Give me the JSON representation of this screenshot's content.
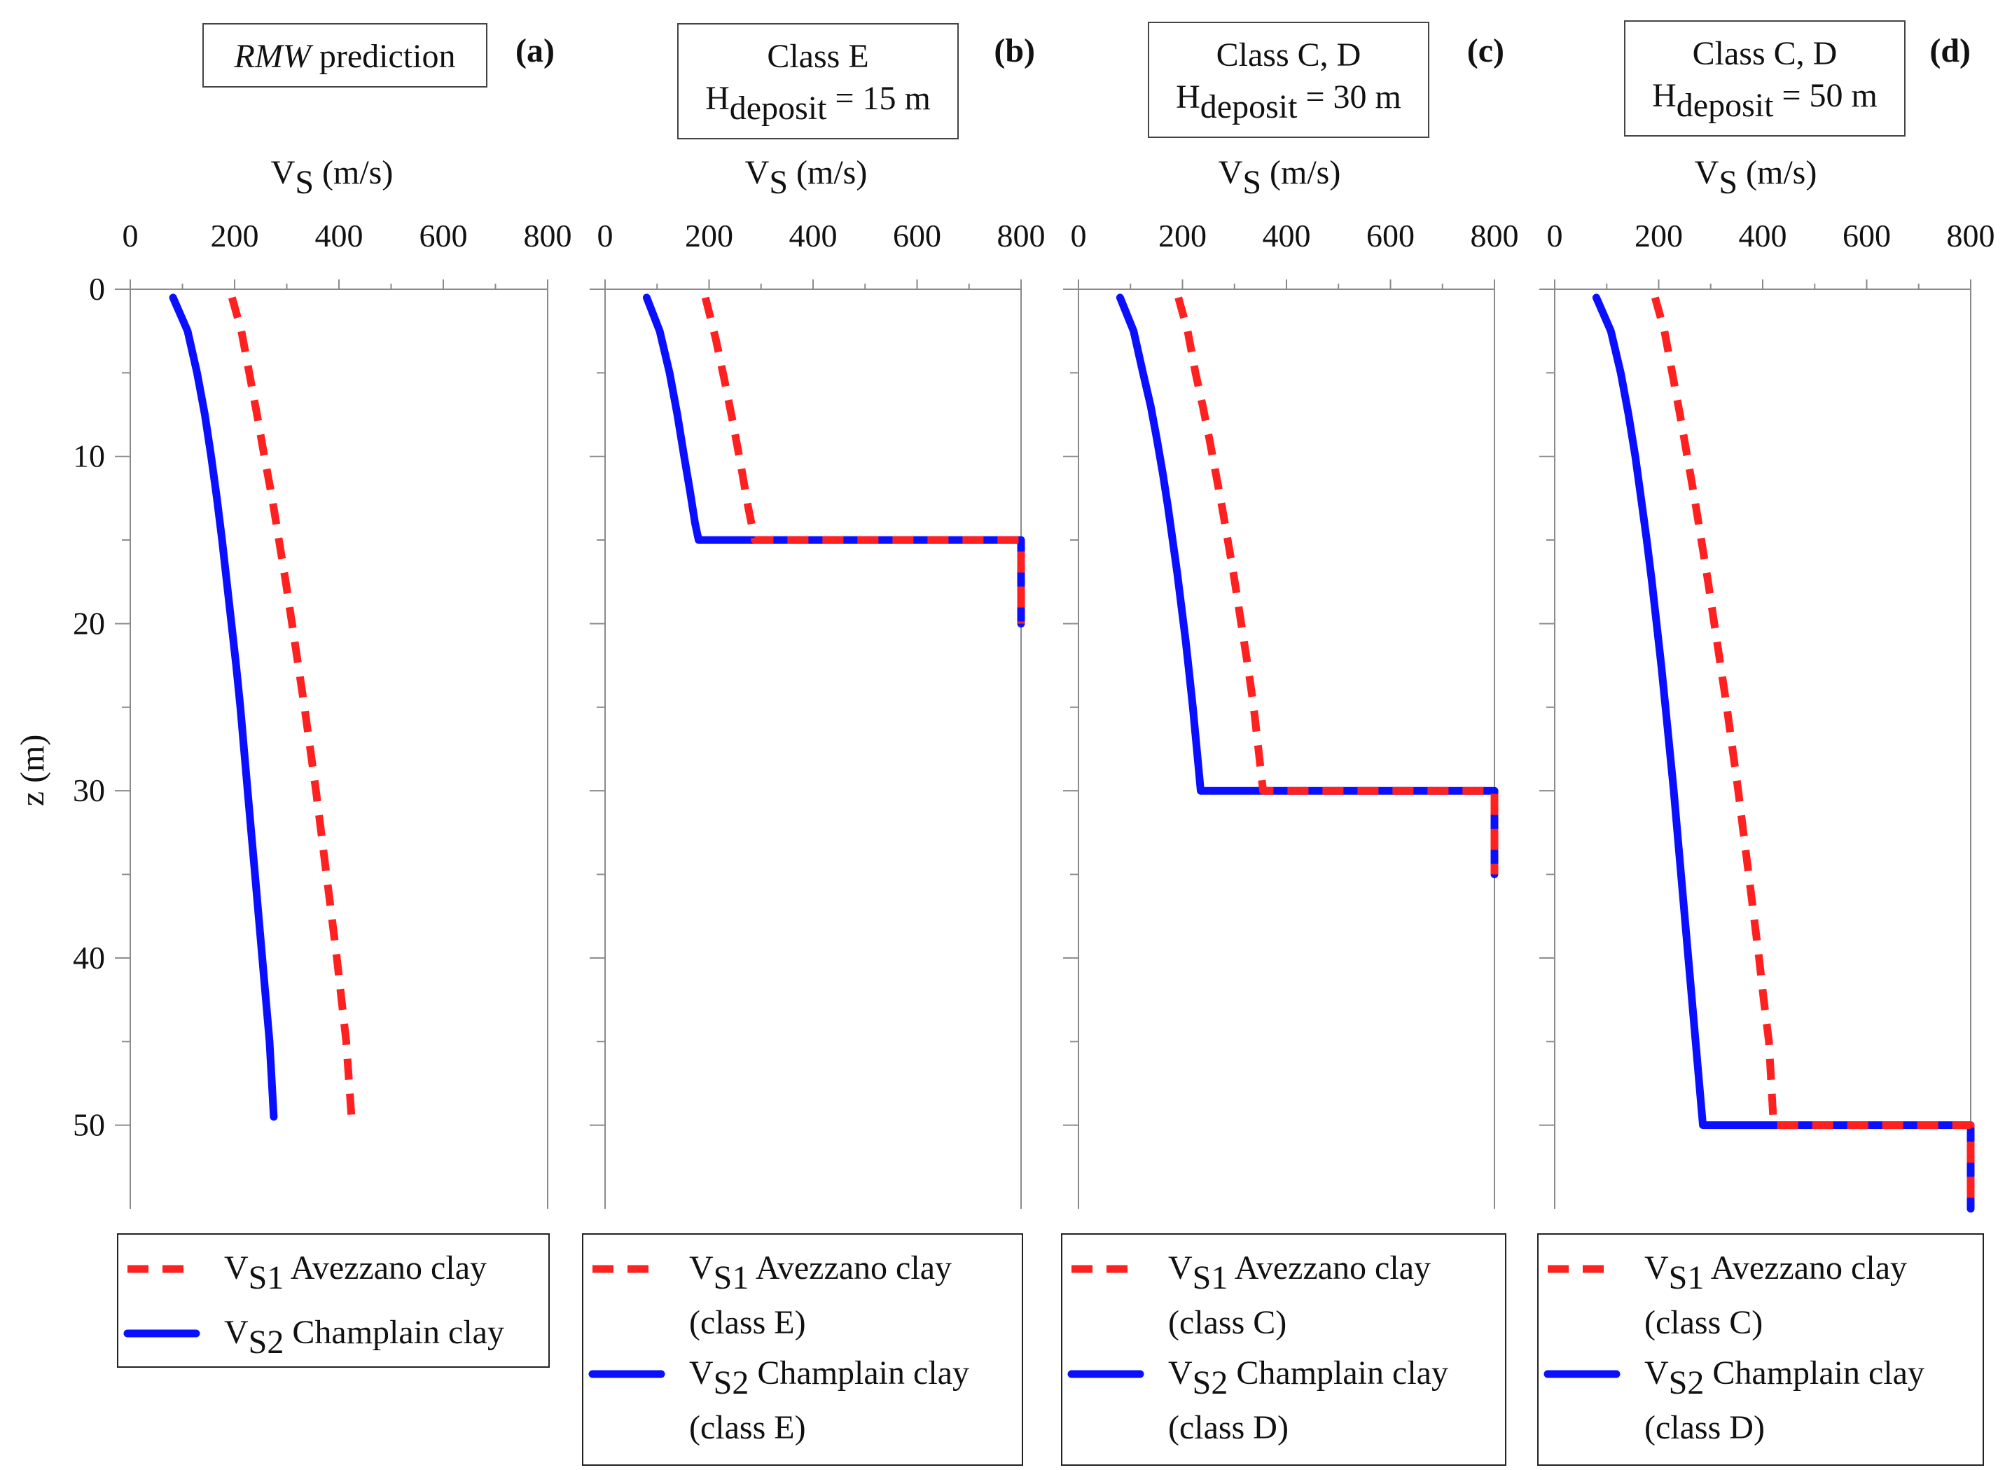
{
  "chart_data": [
    {
      "type": "line",
      "panel_label": "(a)",
      "title_parts": [
        {
          "text": "RMW",
          "italic": true
        },
        {
          "text": " prediction",
          "italic": false
        }
      ],
      "xlabel": {
        "main": "V",
        "sub": "S",
        "rest": " (m/s)"
      },
      "ylabel": "z (m)",
      "xlim": [
        0,
        800
      ],
      "ylim": [
        0,
        55
      ],
      "y_inverted": true,
      "xticks": [
        0,
        200,
        400,
        600,
        800
      ],
      "yticks": [
        0,
        10,
        20,
        30,
        40,
        50
      ],
      "series": [
        {
          "name": "VS1 Avezzano clay",
          "color": "#ff2020",
          "style": "dashed",
          "x": [
            195,
            213,
            228,
            243,
            257,
            272,
            285,
            298,
            310,
            322,
            334,
            345,
            356,
            366,
            376,
            386,
            396,
            405,
            414,
            424
          ],
          "y": [
            0.5,
            2.5,
            5,
            7.5,
            10,
            12.5,
            15,
            17.5,
            20,
            22.5,
            25,
            27.5,
            30,
            32.5,
            35,
            37.5,
            40,
            42.5,
            45,
            49.5
          ]
        },
        {
          "name": "VS2 Champlain clay",
          "color": "#0a10ff",
          "style": "solid",
          "x": [
            82,
            110,
            128,
            143,
            155,
            166,
            176,
            185,
            194,
            203,
            211,
            218,
            225,
            232,
            239,
            246,
            253,
            260,
            267,
            275
          ],
          "y": [
            0.5,
            2.5,
            5,
            7.5,
            10,
            12.5,
            15,
            17.5,
            20,
            22.5,
            25,
            27.5,
            30,
            32.5,
            35,
            37.5,
            40,
            42.5,
            45,
            49.5
          ]
        }
      ],
      "legend": [
        {
          "sym": "VS",
          "sub": "1",
          "lines": [
            "Avezzano clay"
          ]
        },
        {
          "sym": "VS",
          "sub": "2",
          "lines": [
            "Champlain clay"
          ]
        }
      ]
    },
    {
      "type": "line",
      "panel_label": "(b)",
      "title_lines": [
        "Class E"
      ],
      "title_h": {
        "main": "H",
        "sub": "deposit",
        "rest": " = 15 m"
      },
      "xlabel": {
        "main": "V",
        "sub": "S",
        "rest": " (m/s)"
      },
      "xlim": [
        0,
        800
      ],
      "ylim": [
        0,
        55
      ],
      "y_inverted": true,
      "xticks": [
        0,
        200,
        400,
        600,
        800
      ],
      "yticks": [
        0,
        10,
        20,
        30,
        40,
        50
      ],
      "series": [
        {
          "name": "VS1 Avezzano clay (class E)",
          "color": "#ff2020",
          "style": "dashed",
          "x": [
            193,
            213,
            230,
            246,
            261,
            275,
            288,
            800,
            800
          ],
          "y": [
            0.5,
            3,
            5.5,
            8,
            10.5,
            13,
            15,
            15,
            20
          ]
        },
        {
          "name": "VS2 Champlain clay (class E)",
          "color": "#0a10ff",
          "style": "solid",
          "x": [
            80,
            105,
            124,
            139,
            152,
            163,
            173,
            180,
            800,
            800
          ],
          "y": [
            0.5,
            2.5,
            5,
            7.5,
            10,
            12,
            14,
            15,
            15,
            20
          ]
        }
      ],
      "legend": [
        {
          "sym": "VS",
          "sub": "1",
          "lines": [
            "Avezzano clay",
            "(class E)"
          ]
        },
        {
          "sym": "VS",
          "sub": "2",
          "lines": [
            "Champlain clay",
            "(class E)"
          ]
        }
      ]
    },
    {
      "type": "line",
      "panel_label": "(c)",
      "title_lines": [
        "Class C, D"
      ],
      "title_h": {
        "main": "H",
        "sub": "deposit",
        "rest": " = 30 m"
      },
      "xlabel": {
        "main": "V",
        "sub": "S",
        "rest": " (m/s)"
      },
      "xlim": [
        0,
        800
      ],
      "ylim": [
        0,
        55
      ],
      "y_inverted": true,
      "xticks": [
        0,
        200,
        400,
        600,
        800
      ],
      "yticks": [
        0,
        10,
        20,
        30,
        40,
        50
      ],
      "series": [
        {
          "name": "VS1 Avezzano clay (class C)",
          "color": "#ff2020",
          "style": "dashed",
          "x": [
            192,
            210,
            225,
            239,
            252,
            264,
            276,
            287,
            298,
            308,
            318,
            328,
            337,
            346,
            355,
            800,
            800
          ],
          "y": [
            0.5,
            2.5,
            5,
            7,
            9,
            11,
            13,
            15,
            17,
            19,
            21,
            23,
            25,
            27.5,
            30,
            30,
            35
          ]
        },
        {
          "name": "VS2 Champlain clay (class D)",
          "color": "#0a10ff",
          "style": "solid",
          "x": [
            80,
            106,
            124,
            139,
            151,
            162,
            172,
            181,
            190,
            198,
            206,
            213,
            220,
            226,
            232,
            235,
            800,
            800
          ],
          "y": [
            0.5,
            2.5,
            5,
            7,
            9,
            11,
            13,
            15,
            17,
            19,
            21,
            23,
            25,
            27,
            29,
            30,
            30,
            35
          ]
        }
      ],
      "legend": [
        {
          "sym": "VS",
          "sub": "1",
          "lines": [
            "Avezzano clay",
            "(class C)"
          ]
        },
        {
          "sym": "VS",
          "sub": "2",
          "lines": [
            "Champlain clay",
            "(class D)"
          ]
        }
      ]
    },
    {
      "type": "line",
      "panel_label": "(d)",
      "title_lines": [
        "Class C, D"
      ],
      "title_h": {
        "main": "H",
        "sub": "deposit",
        "rest": " = 50 m"
      },
      "xlabel": {
        "main": "V",
        "sub": "S",
        "rest": " (m/s)"
      },
      "xlim": [
        0,
        800
      ],
      "ylim": [
        0,
        55
      ],
      "y_inverted": true,
      "xticks": [
        0,
        200,
        400,
        600,
        800
      ],
      "yticks": [
        0,
        10,
        20,
        30,
        40,
        50
      ],
      "series": [
        {
          "name": "VS1 Avezzano clay (class C)",
          "color": "#ff2020",
          "style": "dashed",
          "x": [
            193,
            211,
            226,
            241,
            255,
            269,
            282,
            295,
            307,
            319,
            331,
            342,
            353,
            363,
            373,
            383,
            393,
            402,
            412,
            421,
            800,
            800
          ],
          "y": [
            0.5,
            2.5,
            5,
            7.5,
            10,
            12.5,
            15,
            17.5,
            20,
            22.5,
            25,
            27.5,
            30,
            32.5,
            35,
            37.5,
            40,
            42.5,
            45,
            50,
            50,
            55
          ]
        },
        {
          "name": "VS2 Champlain clay (class D)",
          "color": "#0a10ff",
          "style": "solid",
          "x": [
            80,
            108,
            127,
            142,
            155,
            166,
            177,
            187,
            196,
            205,
            213,
            221,
            229,
            236,
            243,
            250,
            257,
            264,
            271,
            285,
            800,
            800
          ],
          "y": [
            0.5,
            2.5,
            5,
            7.5,
            10,
            12.5,
            15,
            17.5,
            20,
            22.5,
            25,
            27.5,
            30,
            32.5,
            35,
            37.5,
            40,
            42.5,
            45,
            50,
            50,
            55
          ]
        }
      ],
      "legend": [
        {
          "sym": "VS",
          "sub": "1",
          "lines": [
            "Avezzano clay",
            "(class C)"
          ]
        },
        {
          "sym": "VS",
          "sub": "2",
          "lines": [
            "Champlain clay",
            "(class D)"
          ]
        }
      ]
    }
  ]
}
